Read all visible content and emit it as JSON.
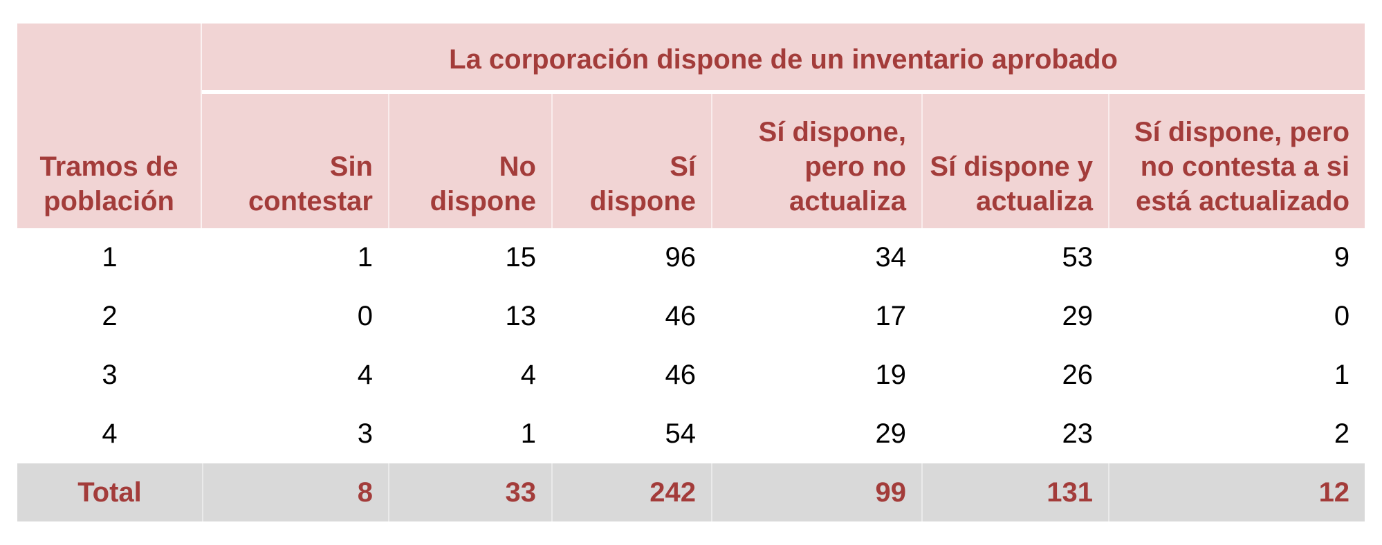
{
  "chart_data": {
    "type": "table",
    "title": "La corporación dispone de un inventario aprobado",
    "row_dimension": "Tramos de población",
    "columns": [
      "Sin contestar",
      "No dispone",
      "Sí dispone",
      "Sí dispone, pero no actualiza",
      "Sí dispone y actualiza",
      "Sí dispone, pero no contesta a si está actualizado"
    ],
    "rows": [
      {
        "tramo": "1",
        "values": [
          1,
          15,
          96,
          34,
          53,
          9
        ]
      },
      {
        "tramo": "2",
        "values": [
          0,
          13,
          46,
          17,
          29,
          0
        ]
      },
      {
        "tramo": "3",
        "values": [
          4,
          4,
          46,
          19,
          26,
          1
        ]
      },
      {
        "tramo": "4",
        "values": [
          3,
          1,
          54,
          29,
          23,
          2
        ]
      }
    ],
    "total_label": "Total",
    "total": [
      8,
      33,
      242,
      99,
      131,
      12
    ]
  },
  "display": {
    "row_dimension_lines": [
      "Tramos de",
      "población"
    ],
    "header_lines": [
      [
        "Sin",
        "contestar"
      ],
      [
        "No",
        "dispone"
      ],
      [
        "Sí",
        "dispone"
      ],
      [
        "Sí dispone,",
        "pero no",
        "actualiza"
      ],
      [
        "Sí dispone y",
        "actualiza"
      ],
      [
        "Sí dispone, pero",
        "no contesta a si",
        "está actualizado"
      ]
    ]
  },
  "colors": {
    "header_background": "#f1d4d4",
    "header_text": "#a33c3a",
    "total_row_background": "#d9d9d9",
    "total_row_text": "#a33c3a",
    "data_text": "#000000",
    "separator": "#ffffff"
  }
}
